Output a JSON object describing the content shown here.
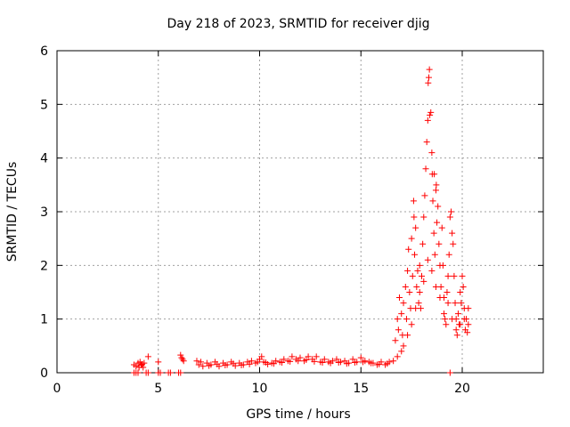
{
  "chart_data": {
    "type": "scatter",
    "title": "Day 218 of 2023, SRMTID for receiver djig",
    "xlabel": "GPS time / hours",
    "ylabel": "SRMTID / TECUs",
    "xlim": [
      0,
      24
    ],
    "ylim": [
      0,
      6
    ],
    "xticks": [
      0,
      5,
      10,
      15,
      20
    ],
    "yticks": [
      0,
      1,
      2,
      3,
      4,
      5,
      6
    ],
    "grid": true,
    "marker": "+",
    "color": "#ff0000",
    "series": [
      {
        "name": "SRMTID",
        "points": [
          [
            3.8,
            0.0
          ],
          [
            3.9,
            0.0
          ],
          [
            4.0,
            0.0
          ],
          [
            4.4,
            0.0
          ],
          [
            4.5,
            0.0
          ],
          [
            5.0,
            0.0
          ],
          [
            5.1,
            0.0
          ],
          [
            5.5,
            0.0
          ],
          [
            5.6,
            0.0
          ],
          [
            6.0,
            0.0
          ],
          [
            6.1,
            0.0
          ],
          [
            19.4,
            0.0
          ],
          [
            3.8,
            0.15
          ],
          [
            3.9,
            0.12
          ],
          [
            4.0,
            0.18
          ],
          [
            4.05,
            0.1
          ],
          [
            4.1,
            0.2
          ],
          [
            4.15,
            0.14
          ],
          [
            4.2,
            0.16
          ],
          [
            4.25,
            0.1
          ],
          [
            4.3,
            0.18
          ],
          [
            4.5,
            0.3
          ],
          [
            5.0,
            0.2
          ],
          [
            6.1,
            0.33
          ],
          [
            6.15,
            0.28
          ],
          [
            6.2,
            0.25
          ],
          [
            6.25,
            0.22
          ],
          [
            6.9,
            0.22
          ],
          [
            7.0,
            0.15
          ],
          [
            7.2,
            0.12
          ],
          [
            7.4,
            0.18
          ],
          [
            7.6,
            0.15
          ],
          [
            7.8,
            0.2
          ],
          [
            8.0,
            0.12
          ],
          [
            8.2,
            0.18
          ],
          [
            8.4,
            0.15
          ],
          [
            8.6,
            0.2
          ],
          [
            8.8,
            0.13
          ],
          [
            9.0,
            0.18
          ],
          [
            9.2,
            0.15
          ],
          [
            9.4,
            0.2
          ],
          [
            9.6,
            0.22
          ],
          [
            9.8,
            0.18
          ],
          [
            10.0,
            0.25
          ],
          [
            10.1,
            0.3
          ],
          [
            10.2,
            0.2
          ],
          [
            10.4,
            0.16
          ],
          [
            10.6,
            0.18
          ],
          [
            10.8,
            0.22
          ],
          [
            11.0,
            0.2
          ],
          [
            11.2,
            0.25
          ],
          [
            11.4,
            0.22
          ],
          [
            11.6,
            0.3
          ],
          [
            11.8,
            0.25
          ],
          [
            12.0,
            0.28
          ],
          [
            12.2,
            0.22
          ],
          [
            12.4,
            0.3
          ],
          [
            12.6,
            0.25
          ],
          [
            12.8,
            0.3
          ],
          [
            13.0,
            0.2
          ],
          [
            13.2,
            0.25
          ],
          [
            13.4,
            0.2
          ],
          [
            13.6,
            0.22
          ],
          [
            13.8,
            0.25
          ],
          [
            14.0,
            0.2
          ],
          [
            14.2,
            0.22
          ],
          [
            14.4,
            0.18
          ],
          [
            14.6,
            0.25
          ],
          [
            14.8,
            0.2
          ],
          [
            15.0,
            0.28
          ],
          [
            15.2,
            0.22
          ],
          [
            15.4,
            0.2
          ],
          [
            15.6,
            0.18
          ],
          [
            15.8,
            0.15
          ],
          [
            16.0,
            0.2
          ],
          [
            16.2,
            0.15
          ],
          [
            16.4,
            0.2
          ],
          [
            16.6,
            0.22
          ],
          [
            16.8,
            0.3
          ],
          [
            7.1,
            0.2
          ],
          [
            7.5,
            0.13
          ],
          [
            7.9,
            0.16
          ],
          [
            8.3,
            0.14
          ],
          [
            8.7,
            0.17
          ],
          [
            9.1,
            0.14
          ],
          [
            9.5,
            0.16
          ],
          [
            9.9,
            0.2
          ],
          [
            10.3,
            0.19
          ],
          [
            10.7,
            0.17
          ],
          [
            11.1,
            0.19
          ],
          [
            11.5,
            0.21
          ],
          [
            11.9,
            0.22
          ],
          [
            12.3,
            0.24
          ],
          [
            12.7,
            0.21
          ],
          [
            13.1,
            0.19
          ],
          [
            13.5,
            0.18
          ],
          [
            13.9,
            0.19
          ],
          [
            14.3,
            0.17
          ],
          [
            14.7,
            0.19
          ],
          [
            15.1,
            0.2
          ],
          [
            15.5,
            0.18
          ],
          [
            15.9,
            0.16
          ],
          [
            16.3,
            0.17
          ],
          [
            16.7,
            0.6
          ],
          [
            16.8,
            1.0
          ],
          [
            16.85,
            0.8
          ],
          [
            16.9,
            1.4
          ],
          [
            17.0,
            1.1
          ],
          [
            17.05,
            0.7
          ],
          [
            17.1,
            1.3
          ],
          [
            17.2,
            1.6
          ],
          [
            17.25,
            1.0
          ],
          [
            17.3,
            1.9
          ],
          [
            17.35,
            2.3
          ],
          [
            17.4,
            1.5
          ],
          [
            17.45,
            1.2
          ],
          [
            17.5,
            2.5
          ],
          [
            17.55,
            1.8
          ],
          [
            17.6,
            3.2
          ],
          [
            17.62,
            2.9
          ],
          [
            17.65,
            2.2
          ],
          [
            17.7,
            2.7
          ],
          [
            17.75,
            1.6
          ],
          [
            17.8,
            1.9
          ],
          [
            17.85,
            1.3
          ],
          [
            17.9,
            2.0
          ],
          [
            17.95,
            1.2
          ],
          [
            18.0,
            1.8
          ],
          [
            18.05,
            2.4
          ],
          [
            18.1,
            2.9
          ],
          [
            18.15,
            3.3
          ],
          [
            18.2,
            3.8
          ],
          [
            18.25,
            4.3
          ],
          [
            18.3,
            4.7
          ],
          [
            18.32,
            5.4
          ],
          [
            18.35,
            5.5
          ],
          [
            18.38,
            5.65
          ],
          [
            18.4,
            4.8
          ],
          [
            18.45,
            4.85
          ],
          [
            18.5,
            4.1
          ],
          [
            18.52,
            3.7
          ],
          [
            18.55,
            3.2
          ],
          [
            18.6,
            2.6
          ],
          [
            18.62,
            3.7
          ],
          [
            18.65,
            2.2
          ],
          [
            18.7,
            3.4
          ],
          [
            18.72,
            3.5
          ],
          [
            18.75,
            2.8
          ],
          [
            18.8,
            3.1
          ],
          [
            18.85,
            2.4
          ],
          [
            18.9,
            2.0
          ],
          [
            18.95,
            1.6
          ],
          [
            19.0,
            2.7
          ],
          [
            19.05,
            2.0
          ],
          [
            19.1,
            1.4
          ],
          [
            19.15,
            1.0
          ],
          [
            19.2,
            0.9
          ],
          [
            19.25,
            1.5
          ],
          [
            19.3,
            1.8
          ],
          [
            19.35,
            2.2
          ],
          [
            19.4,
            2.9
          ],
          [
            19.45,
            3.0
          ],
          [
            19.5,
            2.6
          ],
          [
            19.55,
            2.4
          ],
          [
            19.6,
            1.8
          ],
          [
            19.65,
            1.3
          ],
          [
            19.7,
            1.0
          ],
          [
            19.75,
            0.7
          ],
          [
            19.8,
            1.1
          ],
          [
            19.85,
            0.9
          ],
          [
            19.9,
            1.5
          ],
          [
            19.95,
            1.3
          ],
          [
            20.0,
            1.8
          ],
          [
            20.05,
            1.6
          ],
          [
            20.1,
            1.2
          ],
          [
            20.15,
            0.8
          ],
          [
            20.2,
            1.0
          ],
          [
            20.25,
            0.75
          ],
          [
            20.3,
            1.2
          ],
          [
            17.0,
            0.4
          ],
          [
            17.1,
            0.5
          ],
          [
            17.3,
            0.7
          ],
          [
            17.5,
            0.9
          ],
          [
            17.7,
            1.2
          ],
          [
            17.9,
            1.5
          ],
          [
            18.1,
            1.7
          ],
          [
            18.3,
            2.1
          ],
          [
            18.5,
            1.9
          ],
          [
            18.7,
            1.6
          ],
          [
            18.9,
            1.4
          ],
          [
            19.1,
            1.1
          ],
          [
            19.3,
            1.3
          ],
          [
            19.5,
            1.0
          ],
          [
            19.7,
            0.8
          ],
          [
            19.9,
            0.9
          ],
          [
            20.1,
            1.0
          ],
          [
            20.3,
            0.9
          ]
        ]
      }
    ]
  }
}
